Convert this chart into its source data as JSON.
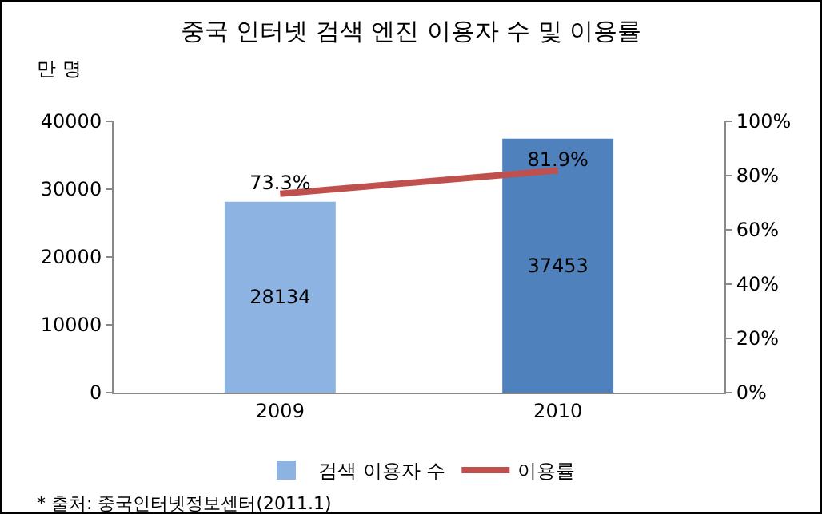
{
  "chart_data": {
    "type": "bar",
    "title": "중국 인터넷 검색 엔진 이용자 수 및 이용률",
    "ylabel": "만 명",
    "categories": [
      "2009",
      "2010"
    ],
    "series": [
      {
        "name": "검색 이용자 수",
        "colors": [
          "#8db3e2",
          "#4f81bd"
        ],
        "values": [
          28134,
          37453
        ],
        "value_labels": [
          "28134",
          "37453"
        ]
      },
      {
        "name": "이용률",
        "type": "line",
        "axis": "y2",
        "color": "#c0504d",
        "values": [
          73.3,
          81.9
        ],
        "value_labels": [
          "73.3%",
          "81.9%"
        ]
      }
    ],
    "ylim": [
      0,
      40000
    ],
    "yticks": [
      0,
      10000,
      20000,
      30000,
      40000
    ],
    "y2lim": [
      0,
      100
    ],
    "y2ticks": [
      {
        "value": 0,
        "label": "0%"
      },
      {
        "value": 20,
        "label": "20%"
      },
      {
        "value": 40,
        "label": "40%"
      },
      {
        "value": 60,
        "label": "60%"
      },
      {
        "value": 80,
        "label": "80%"
      },
      {
        "value": 100,
        "label": "100%"
      }
    ],
    "grid": false,
    "legend": "bottom",
    "marker": "none",
    "line_style": "solid",
    "annotations": [
      "* 출처: 중국인터넷정보센터(2011.1)"
    ]
  }
}
